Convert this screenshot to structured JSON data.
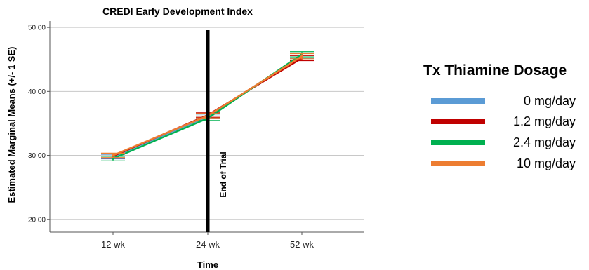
{
  "chart_data": {
    "type": "line",
    "title": "CREDI Early Development Index",
    "xlabel": "Time",
    "ylabel": "Estimated Marginal Means (+/- 1 SE)",
    "categories": [
      "12 wk",
      "24 wk",
      "52 wk"
    ],
    "ylim": [
      18,
      51
    ],
    "yticks": [
      20.0,
      30.0,
      40.0,
      50.0
    ],
    "ytick_labels": [
      "20.00",
      "30.00",
      "40.00",
      "50.00"
    ],
    "grid": true,
    "legend": {
      "title": "Tx Thiamine Dosage",
      "placement": "right"
    },
    "annotation": {
      "text": "End of Trial",
      "x_category": "24 wk"
    },
    "series": [
      {
        "name": "0 mg/day",
        "color": "#5b9bd5",
        "values": [
          29.8,
          36.1,
          45.6
        ]
      },
      {
        "name": "1.2 mg/day",
        "color": "#c00000",
        "values": [
          29.9,
          36.3,
          45.2
        ]
      },
      {
        "name": "2.4 mg/day",
        "color": "#00b050",
        "values": [
          29.5,
          35.8,
          45.8
        ]
      },
      {
        "name": "10 mg/day",
        "color": "#ed7d31",
        "values": [
          30.0,
          36.2,
          45.5
        ]
      }
    ],
    "error": [
      0.35,
      0.35,
      0.4
    ]
  }
}
